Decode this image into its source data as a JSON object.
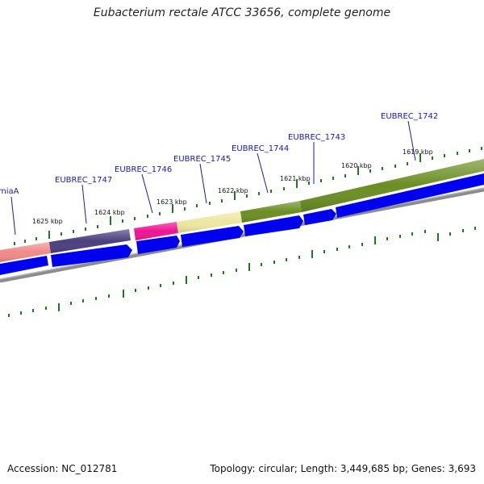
{
  "title": "Eubacterium rectale ATCC 33656, complete genome",
  "footer": {
    "accession": "Accession: NC_012781",
    "summary": "Topology: circular; Length: 3,449,685 bp; Genes: 3,693"
  },
  "colors": {
    "tick": "#1c7a1c",
    "gene_label": "#1a1aa8",
    "cds_blue": "#0000ee",
    "backbone": "#8c8c8c"
  },
  "genes": [
    {
      "label": "miaA",
      "color": "#f08a8a"
    },
    {
      "label": "EUBREC_1747",
      "color": "#4b3f7d"
    },
    {
      "label": "EUBREC_1746",
      "color": "#ee1493"
    },
    {
      "label": "EUBREC_1745",
      "color": "#ece7a0"
    },
    {
      "label": "EUBREC_1744",
      "color": "#6b8e23"
    },
    {
      "label": "EUBREC_1743",
      "color": "#6b8e23"
    },
    {
      "label": "EUBREC_1742",
      "color": "#6b8e23"
    }
  ],
  "kbp_labels": [
    "1625 kbp",
    "1624 kbp",
    "1623 kbp",
    "1622 kbp",
    "1621 kbp",
    "1620 kbp",
    "1619 kbp"
  ]
}
